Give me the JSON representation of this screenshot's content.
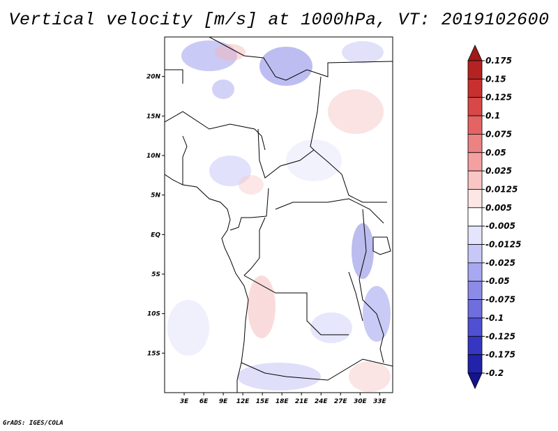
{
  "title": "Vertical velocity [m/s] at 1000hPa, VT: 2019102600",
  "credit": "GrADS: IGES/COLA",
  "map": {
    "lat_range": [
      -20,
      25
    ],
    "lon_range": [
      0,
      35
    ],
    "lat_ticks": [
      {
        "value": 20,
        "label": "20N"
      },
      {
        "value": 15,
        "label": "15N"
      },
      {
        "value": 10,
        "label": "10N"
      },
      {
        "value": 5,
        "label": "5N"
      },
      {
        "value": 0,
        "label": "EQ"
      },
      {
        "value": -5,
        "label": "5S"
      },
      {
        "value": -10,
        "label": "10S"
      },
      {
        "value": -15,
        "label": "15S"
      }
    ],
    "lon_ticks": [
      {
        "value": 3,
        "label": "3E"
      },
      {
        "value": 6,
        "label": "6E"
      },
      {
        "value": 9,
        "label": "9E"
      },
      {
        "value": 12,
        "label": "12E"
      },
      {
        "value": 15,
        "label": "15E"
      },
      {
        "value": 18,
        "label": "18E"
      },
      {
        "value": 21,
        "label": "21E"
      },
      {
        "value": 24,
        "label": "24E"
      },
      {
        "value": 27,
        "label": "27E"
      },
      {
        "value": 30,
        "label": "30E"
      },
      {
        "value": 33,
        "label": "33E"
      }
    ]
  },
  "colorbar": {
    "labels": [
      "0.175",
      "0.15",
      "0.125",
      "0.1",
      "0.075",
      "0.05",
      "0.025",
      "0.0125",
      "0.005",
      "-0.005",
      "-0.0125",
      "-0.025",
      "-0.05",
      "-0.075",
      "-0.1",
      "-0.125",
      "-0.175",
      "-0.2"
    ],
    "colors": [
      "#a01a1a",
      "#b52222",
      "#c83030",
      "#d84848",
      "#e46464",
      "#ec8282",
      "#f4a0a0",
      "#f9c6c6",
      "#fde6e6",
      "#ffffff",
      "#e4e4fc",
      "#c8c8f8",
      "#a8a8f2",
      "#8c8ce8",
      "#6e6ede",
      "#5050d2",
      "#3636c2",
      "#2222aa",
      "#14148c"
    ]
  }
}
